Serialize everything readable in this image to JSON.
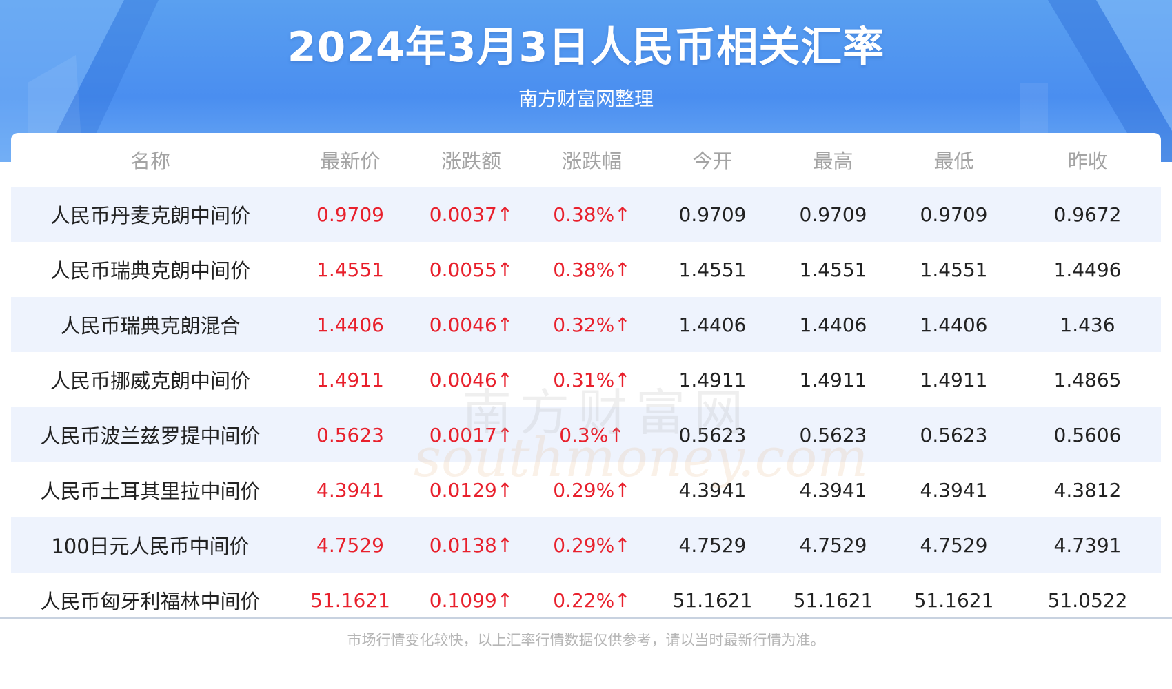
{
  "header": {
    "title": "2024年3月3日人民币相关汇率",
    "subtitle": "南方财富网整理"
  },
  "table": {
    "columns": [
      "名称",
      "最新价",
      "涨跌额",
      "涨跌幅",
      "今开",
      "最高",
      "最低",
      "昨收"
    ],
    "rows": [
      [
        "人民币丹麦克朗中间价",
        "0.9709",
        "0.0037↑",
        "0.38%↑",
        "0.9709",
        "0.9709",
        "0.9709",
        "0.9672"
      ],
      [
        "人民币瑞典克朗中间价",
        "1.4551",
        "0.0055↑",
        "0.38%↑",
        "1.4551",
        "1.4551",
        "1.4551",
        "1.4496"
      ],
      [
        "人民币瑞典克朗混合",
        "1.4406",
        "0.0046↑",
        "0.32%↑",
        "1.4406",
        "1.4406",
        "1.4406",
        "1.436"
      ],
      [
        "人民币挪威克朗中间价",
        "1.4911",
        "0.0046↑",
        "0.31%↑",
        "1.4911",
        "1.4911",
        "1.4911",
        "1.4865"
      ],
      [
        "人民币波兰兹罗提中间价",
        "0.5623",
        "0.0017↑",
        "0.3%↑",
        "0.5623",
        "0.5623",
        "0.5623",
        "0.5606"
      ],
      [
        "人民币土耳其里拉中间价",
        "4.3941",
        "0.0129↑",
        "0.29%↑",
        "4.3941",
        "4.3941",
        "4.3941",
        "4.3812"
      ],
      [
        "100日元人民币中间价",
        "4.7529",
        "0.0138↑",
        "0.29%↑",
        "4.7529",
        "4.7529",
        "4.7529",
        "4.7391"
      ],
      [
        "人民币匈牙利福林中间价",
        "51.1621",
        "0.1099↑",
        "0.22%↑",
        "51.1621",
        "51.1621",
        "51.1621",
        "51.0522"
      ]
    ]
  },
  "watermark": {
    "cn": "南方财富网",
    "en": "southmoney.com"
  },
  "footer": {
    "note": "市场行情变化较快，以上汇率行情数据仅供参考，请以当时最新行情为准。"
  },
  "colors": {
    "banner": "#4a8ef0",
    "up": "#e8202c",
    "row_alt": "#eef3fd",
    "header_text": "#a4a4a4"
  }
}
